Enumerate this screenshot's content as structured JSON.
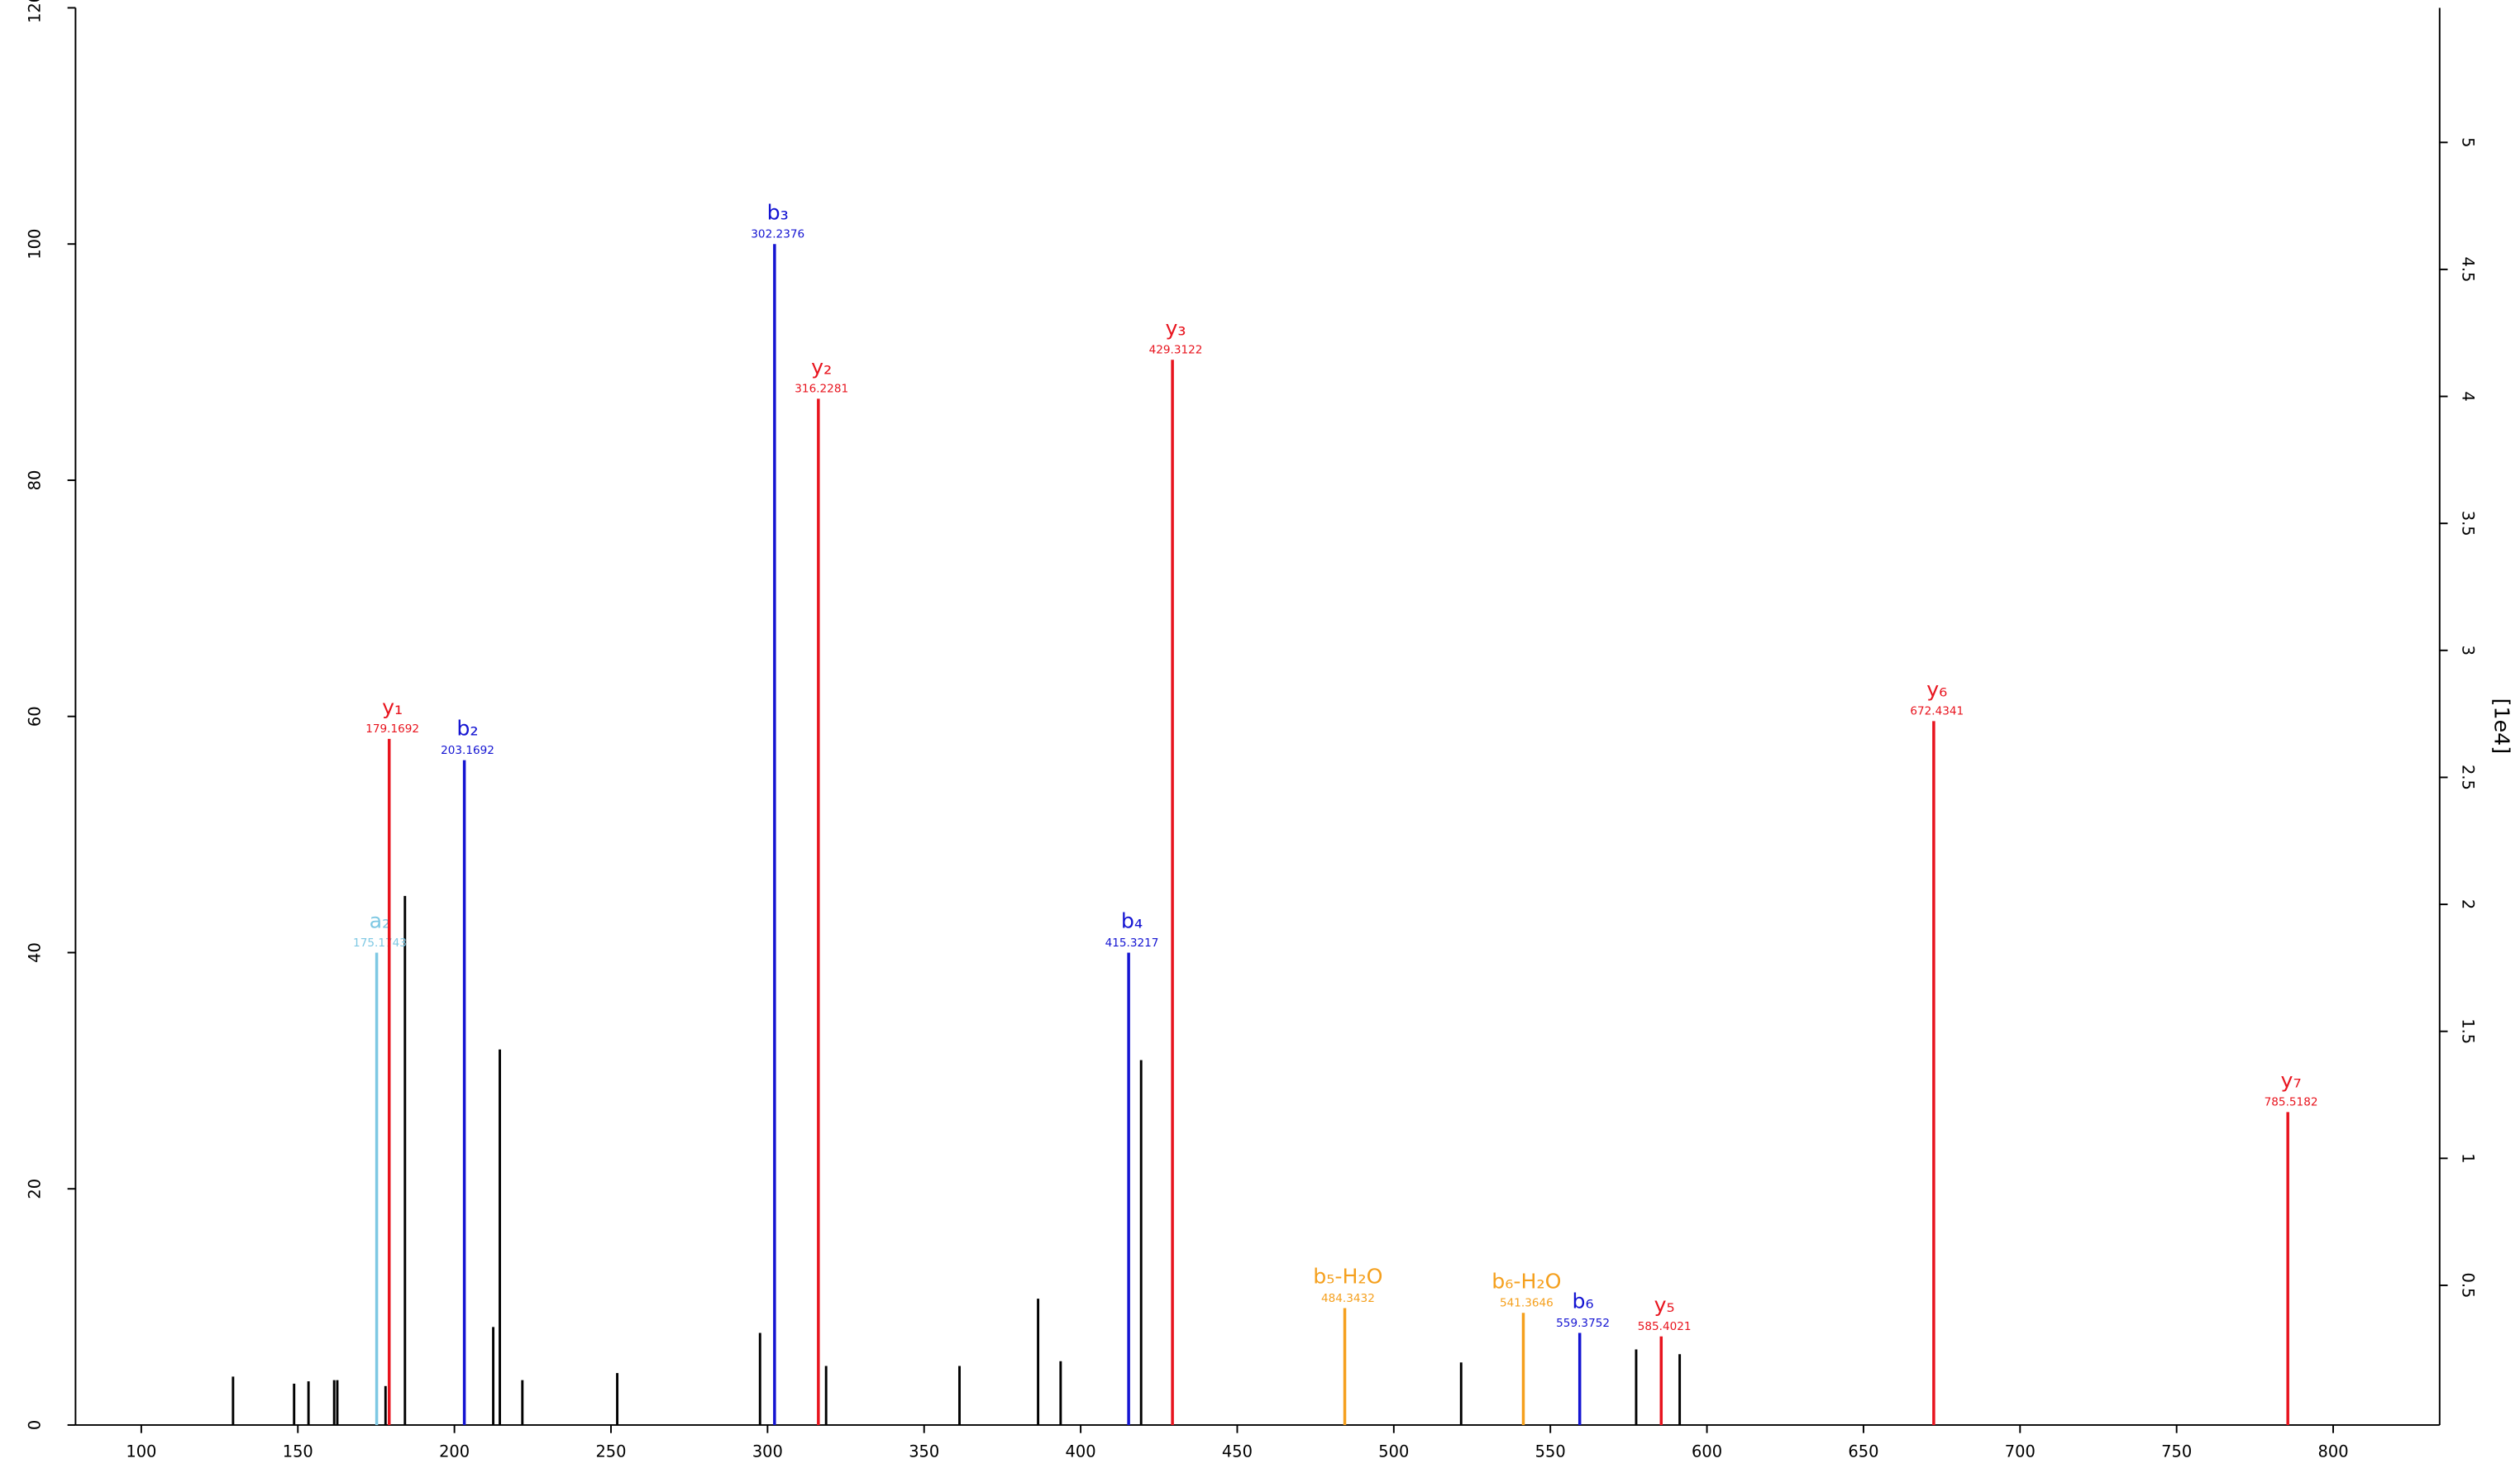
{
  "chart_data": {
    "type": "stem",
    "y2_label": "[1e4]",
    "xlim": [
      79,
      834
    ],
    "xticks": [
      100,
      150,
      200,
      250,
      300,
      350,
      400,
      450,
      500,
      550,
      600,
      650,
      700,
      750,
      800
    ],
    "ylim": [
      0,
      120
    ],
    "yticks": [
      0,
      20,
      40,
      60,
      80,
      100,
      120
    ],
    "y2lim": [
      -0.05,
      5.53
    ],
    "y2ticks": [
      0.5,
      1,
      1.5,
      2,
      2.5,
      3,
      3.5,
      4,
      4.5,
      5
    ],
    "peaks": {
      "color": "#000000",
      "x": [
        129.3,
        148.8,
        153.4,
        161.6,
        162.6,
        178.0,
        184.2,
        212.4,
        214.5,
        221.7,
        252.0,
        297.6,
        318.7,
        361.3,
        386.4,
        393.6,
        419.3,
        521.5,
        577.4,
        591.3
      ],
      "values": [
        4.1,
        3.5,
        3.7,
        3.8,
        3.8,
        3.3,
        44.8,
        8.3,
        31.8,
        3.8,
        4.4,
        7.8,
        5.0,
        5.0,
        10.7,
        5.4,
        30.9,
        5.3,
        6.4,
        6.0
      ]
    },
    "annotated": [
      {
        "name": "a₂",
        "x": 175.1743,
        "value": 40.0,
        "color": "#7ec8e3"
      },
      {
        "name": "y₁",
        "x": 179.1692,
        "value": 58.1,
        "color": "#e8141e"
      },
      {
        "name": "b₂",
        "x": 203.1692,
        "value": 56.3,
        "color": "#1414d2"
      },
      {
        "name": "b₃",
        "x": 302.2376,
        "value": 100,
        "color": "#1414d2"
      },
      {
        "name": "y₂",
        "x": 316.2281,
        "value": 86.9,
        "color": "#e8141e"
      },
      {
        "name": "b₄",
        "x": 415.3217,
        "value": 40.0,
        "color": "#1414d2"
      },
      {
        "name": "y₃",
        "x": 429.3122,
        "value": 90.2,
        "color": "#e8141e"
      },
      {
        "name": "b₅-H₂O",
        "x": 484.3432,
        "value": 9.9,
        "color": "#f5a01e"
      },
      {
        "name": "b₆-H₂O",
        "x": 541.3646,
        "value": 9.5,
        "color": "#f5a01e"
      },
      {
        "name": "b₆",
        "x": 559.3752,
        "value": 7.8,
        "color": "#1414d2"
      },
      {
        "name": "y₅",
        "x": 585.4021,
        "value": 7.5,
        "color": "#e8141e"
      },
      {
        "name": "y₆",
        "x": 672.4341,
        "value": 59.6,
        "color": "#e8141e"
      },
      {
        "name": "y₇",
        "x": 785.5182,
        "value": 26.5,
        "color": "#e8141e"
      }
    ]
  }
}
